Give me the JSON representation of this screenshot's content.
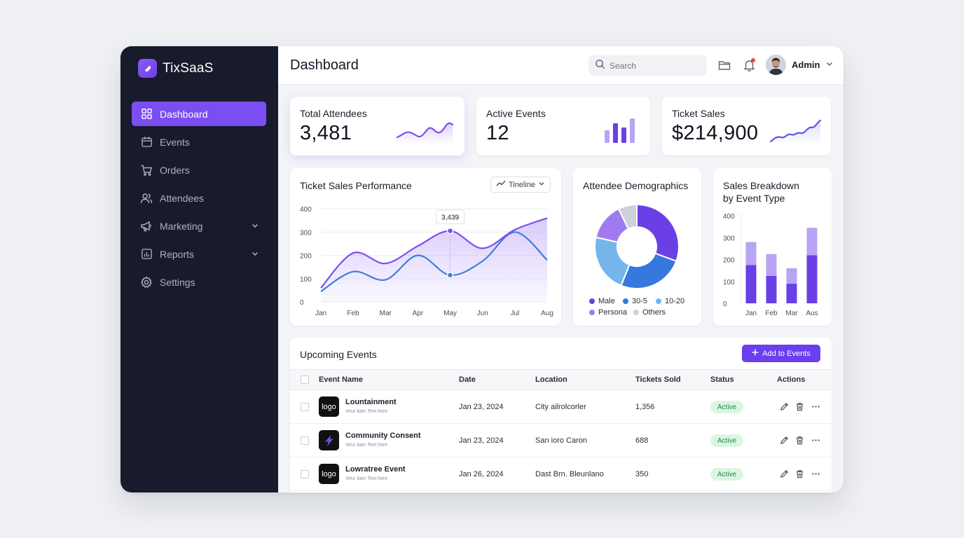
{
  "brand": {
    "name": "TixSaaS"
  },
  "sidebar": {
    "items": [
      {
        "label": "Dashboard",
        "icon": "grid-icon",
        "active": true
      },
      {
        "label": "Events",
        "icon": "calendar-icon"
      },
      {
        "label": "Orders",
        "icon": "cart-icon"
      },
      {
        "label": "Attendees",
        "icon": "users-icon"
      },
      {
        "label": "Marketing",
        "icon": "megaphone-icon",
        "expandable": true
      },
      {
        "label": "Reports",
        "icon": "reports-icon",
        "expandable": true
      },
      {
        "label": "Settings",
        "icon": "gear-icon"
      }
    ]
  },
  "header": {
    "title": "Dashboard",
    "search_placeholder": "Search",
    "user_name": "Admin"
  },
  "stats": [
    {
      "label": "Total Attendees",
      "value": "3,481",
      "spark": "line"
    },
    {
      "label": "Active Events",
      "value": "12",
      "spark": "bars"
    },
    {
      "label": "Ticket Sales",
      "value": "$214,900",
      "spark": "line"
    }
  ],
  "colors": {
    "accent": "#7b4ef1",
    "sidebar_bg": "#171b2b",
    "series_purple": "#7b4ef1",
    "series_blue": "#3b7fd8",
    "active_badge_bg": "#dcf5e3",
    "active_badge_fg": "#1d8a4b"
  },
  "performance": {
    "title": "Ticket Sales Performance",
    "filter_label": "Tineline"
  },
  "demographics": {
    "title": "Attendee Demographics"
  },
  "breakdown": {
    "title_line1": "Sales Breakdown",
    "title_line2": "by Event Type"
  },
  "chart_data": [
    {
      "type": "area",
      "title": "Ticket Sales Performance",
      "categories": [
        "Jan",
        "Feb",
        "Mar",
        "Apr",
        "May",
        "Jun",
        "Jul",
        "Aug"
      ],
      "ylim": [
        0,
        400
      ],
      "yticks": [
        0,
        100,
        200,
        300,
        400
      ],
      "grid": true,
      "series": [
        {
          "color": "#7b4ef1",
          "values": [
            60,
            210,
            165,
            240,
            305,
            230,
            310,
            360
          ]
        },
        {
          "color": "#3b7fd8",
          "values": [
            45,
            130,
            95,
            200,
            115,
            175,
            300,
            180
          ]
        }
      ],
      "annotation": {
        "category": "May",
        "label": "3,439"
      }
    },
    {
      "type": "pie",
      "title": "Attendee Demographics",
      "donut": true,
      "slices": [
        {
          "label": "Male",
          "value": 30,
          "color": "#6a3fe6"
        },
        {
          "label": "30-5",
          "value": 25,
          "color": "#3678dd"
        },
        {
          "label": "10-20",
          "value": 22,
          "color": "#74b6ec"
        },
        {
          "label": "Persona",
          "value": 14,
          "color": "#a07bf0"
        },
        {
          "label": "Others",
          "value": 7,
          "color": "#cfd1d8"
        }
      ]
    },
    {
      "type": "bar",
      "title": "Sales Breakdown by Event Type",
      "stacked": true,
      "categories": [
        "Jan",
        "Feb",
        "Mar",
        "Aus"
      ],
      "ylim": [
        0,
        400
      ],
      "yticks": [
        0,
        100,
        200,
        300,
        400
      ],
      "series": [
        {
          "color": "#6a3fe6",
          "values": [
            175,
            125,
            90,
            220
          ]
        },
        {
          "color": "#b8a4f4",
          "values": [
            105,
            100,
            70,
            125
          ]
        }
      ]
    }
  ],
  "table": {
    "title": "Upcoming Events",
    "add_button": "Add to Events",
    "columns": [
      "Event Name",
      "Date",
      "Location",
      "Tickets Sold",
      "Status",
      "Actions"
    ],
    "rows": [
      {
        "logo": "logo",
        "name": "Lountainment",
        "sub": "Veur itam Text here",
        "date": "Jan 23, 2024",
        "location": "City ailrolcorler",
        "tickets": "1,356",
        "status": "Active"
      },
      {
        "logo": "",
        "name": "Community Consent",
        "sub": "Veur itam Text here",
        "date": "Jan 23, 2024",
        "location": "San ioro Caron",
        "tickets": "688",
        "status": "Active"
      },
      {
        "logo": "logo",
        "name": "Lowratree Event",
        "sub": "Veur itam Text here",
        "date": "Jan 26, 2024",
        "location": "Dast Brn. Bleunlano",
        "tickets": "350",
        "status": "Active"
      }
    ]
  }
}
